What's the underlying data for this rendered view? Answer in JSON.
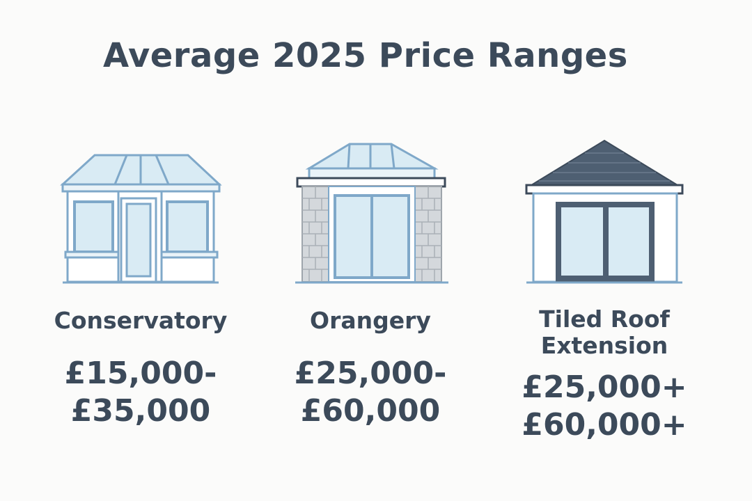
{
  "title": "Average 2025 Price Ranges",
  "colors": {
    "text": "#3c4a5a",
    "frame": "#7fa8c9",
    "glass": "#d9ebf4",
    "brick": "#c9cdd1",
    "roof_dark": "#4e5f72"
  },
  "items": [
    {
      "icon": "conservatory-icon",
      "name_lines": [
        "Conservatory"
      ],
      "price_lines": [
        "£15,000-",
        "£35,000"
      ]
    },
    {
      "icon": "orangery-icon",
      "name_lines": [
        "Orangery"
      ],
      "price_lines": [
        "£25,000-",
        "£60,000"
      ]
    },
    {
      "icon": "tiled-roof-extension-icon",
      "name_lines": [
        "Tiled Roof",
        "Extension"
      ],
      "price_lines": [
        "£25,000+",
        "£60,000+"
      ]
    }
  ]
}
